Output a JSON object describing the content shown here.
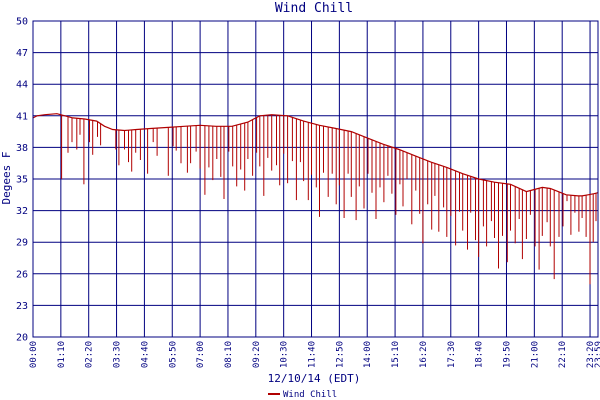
{
  "chart_data": {
    "type": "line",
    "title": "Wind Chill",
    "xlabel": "12/10/14 (EDT)",
    "ylabel": "Degees F",
    "ylim": [
      20,
      50
    ],
    "yticks": [
      "20",
      "23",
      "26",
      "29",
      "32",
      "35",
      "38",
      "41",
      "44",
      "47",
      "50"
    ],
    "xlim": [
      0,
      1420
    ],
    "xticks": [
      {
        "label": "00:00",
        "t": 0
      },
      {
        "label": "01:10",
        "t": 70
      },
      {
        "label": "02:20",
        "t": 140
      },
      {
        "label": "03:30",
        "t": 210
      },
      {
        "label": "04:40",
        "t": 280
      },
      {
        "label": "05:50",
        "t": 350
      },
      {
        "label": "07:00",
        "t": 420
      },
      {
        "label": "08:10",
        "t": 490
      },
      {
        "label": "09:20",
        "t": 560
      },
      {
        "label": "10:30",
        "t": 630
      },
      {
        "label": "11:40",
        "t": 700
      },
      {
        "label": "12:50",
        "t": 770
      },
      {
        "label": "14:00",
        "t": 840
      },
      {
        "label": "15:10",
        "t": 910
      },
      {
        "label": "16:20",
        "t": 980
      },
      {
        "label": "17:30",
        "t": 1050
      },
      {
        "label": "18:40",
        "t": 1120
      },
      {
        "label": "19:50",
        "t": 1190
      },
      {
        "label": "21:00",
        "t": 1260
      },
      {
        "label": "22:10",
        "t": 1330
      },
      {
        "label": "23:20",
        "t": 1400
      },
      {
        "label": "23:59",
        "t": 1439
      }
    ],
    "grid": true,
    "legend_position": "bottom-center",
    "colors": {
      "line": "#b00000",
      "axis": "#000080",
      "grid": "#000080",
      "background": "#ffffff"
    },
    "series": [
      {
        "name": "Wind Chill",
        "upper_envelope": [
          [
            0,
            40.8
          ],
          [
            10,
            41.0
          ],
          [
            30,
            41.1
          ],
          [
            60,
            41.2
          ],
          [
            80,
            41.0
          ],
          [
            100,
            40.8
          ],
          [
            130,
            40.7
          ],
          [
            160,
            40.5
          ],
          [
            180,
            40.0
          ],
          [
            200,
            39.7
          ],
          [
            230,
            39.6
          ],
          [
            260,
            39.7
          ],
          [
            300,
            39.8
          ],
          [
            340,
            39.9
          ],
          [
            380,
            40.0
          ],
          [
            420,
            40.1
          ],
          [
            460,
            40.0
          ],
          [
            500,
            40.0
          ],
          [
            540,
            40.4
          ],
          [
            570,
            41.0
          ],
          [
            600,
            41.1
          ],
          [
            640,
            41.0
          ],
          [
            680,
            40.5
          ],
          [
            720,
            40.1
          ],
          [
            760,
            39.8
          ],
          [
            800,
            39.5
          ],
          [
            840,
            38.9
          ],
          [
            880,
            38.3
          ],
          [
            920,
            37.8
          ],
          [
            960,
            37.2
          ],
          [
            1000,
            36.6
          ],
          [
            1040,
            36.1
          ],
          [
            1080,
            35.5
          ],
          [
            1120,
            35.0
          ],
          [
            1160,
            34.7
          ],
          [
            1200,
            34.5
          ],
          [
            1240,
            33.8
          ],
          [
            1260,
            34.0
          ],
          [
            1280,
            34.2
          ],
          [
            1300,
            34.1
          ],
          [
            1320,
            33.8
          ],
          [
            1340,
            33.5
          ],
          [
            1370,
            33.4
          ],
          [
            1380,
            33.4
          ],
          [
            1395,
            33.5
          ],
          [
            1410,
            33.6
          ],
          [
            1420,
            33.7
          ]
        ],
        "dips": [
          [
            72,
            35.0
          ],
          [
            88,
            37.5
          ],
          [
            98,
            38.5
          ],
          [
            110,
            37.8
          ],
          [
            118,
            39.2
          ],
          [
            128,
            34.5
          ],
          [
            142,
            38.5
          ],
          [
            150,
            37.3
          ],
          [
            162,
            39.0
          ],
          [
            170,
            38.2
          ],
          [
            208,
            37.8
          ],
          [
            216,
            36.3
          ],
          [
            230,
            37.8
          ],
          [
            240,
            36.6
          ],
          [
            248,
            35.7
          ],
          [
            258,
            37.5
          ],
          [
            270,
            36.8
          ],
          [
            288,
            35.5
          ],
          [
            302,
            38.5
          ],
          [
            312,
            37.2
          ],
          [
            340,
            35.3
          ],
          [
            352,
            38.1
          ],
          [
            360,
            37.7
          ],
          [
            372,
            36.5
          ],
          [
            388,
            35.6
          ],
          [
            396,
            36.5
          ],
          [
            410,
            37.6
          ],
          [
            420,
            36.0
          ],
          [
            432,
            33.5
          ],
          [
            442,
            36.1
          ],
          [
            452,
            34.9
          ],
          [
            462,
            36.9
          ],
          [
            472,
            35.2
          ],
          [
            480,
            33.1
          ],
          [
            492,
            37.6
          ],
          [
            502,
            36.2
          ],
          [
            512,
            34.3
          ],
          [
            522,
            35.9
          ],
          [
            532,
            33.9
          ],
          [
            540,
            36.9
          ],
          [
            552,
            35.3
          ],
          [
            562,
            37.5
          ],
          [
            570,
            36.2
          ],
          [
            580,
            33.4
          ],
          [
            590,
            37.0
          ],
          [
            600,
            35.8
          ],
          [
            612,
            36.3
          ],
          [
            620,
            34.4
          ],
          [
            630,
            37.4
          ],
          [
            640,
            34.6
          ],
          [
            652,
            36.7
          ],
          [
            662,
            33.0
          ],
          [
            672,
            36.6
          ],
          [
            680,
            34.8
          ],
          [
            692,
            33.0
          ],
          [
            700,
            35.4
          ],
          [
            712,
            34.2
          ],
          [
            720,
            31.4
          ],
          [
            730,
            35.6
          ],
          [
            742,
            33.3
          ],
          [
            752,
            35.5
          ],
          [
            762,
            32.6
          ],
          [
            770,
            34.4
          ],
          [
            782,
            31.3
          ],
          [
            792,
            35.5
          ],
          [
            800,
            33.3
          ],
          [
            812,
            31.1
          ],
          [
            820,
            34.3
          ],
          [
            832,
            32.2
          ],
          [
            842,
            35.5
          ],
          [
            852,
            33.7
          ],
          [
            862,
            31.2
          ],
          [
            872,
            34.2
          ],
          [
            882,
            32.8
          ],
          [
            892,
            35.3
          ],
          [
            902,
            33.6
          ],
          [
            912,
            31.6
          ],
          [
            922,
            34.5
          ],
          [
            930,
            32.4
          ],
          [
            940,
            35.0
          ],
          [
            952,
            30.7
          ],
          [
            962,
            33.9
          ],
          [
            972,
            31.7
          ],
          [
            980,
            28.9
          ],
          [
            992,
            32.6
          ],
          [
            1002,
            30.2
          ],
          [
            1010,
            33.4
          ],
          [
            1020,
            30.0
          ],
          [
            1032,
            32.3
          ],
          [
            1040,
            29.5
          ],
          [
            1050,
            31.5
          ],
          [
            1062,
            28.7
          ],
          [
            1072,
            31.9
          ],
          [
            1080,
            30.1
          ],
          [
            1092,
            28.3
          ],
          [
            1100,
            31.8
          ],
          [
            1112,
            29.2
          ],
          [
            1120,
            27.6
          ],
          [
            1132,
            30.5
          ],
          [
            1140,
            28.6
          ],
          [
            1152,
            31.0
          ],
          [
            1160,
            29.4
          ],
          [
            1170,
            26.5
          ],
          [
            1180,
            29.6
          ],
          [
            1192,
            27.1
          ],
          [
            1200,
            30.1
          ],
          [
            1212,
            28.9
          ],
          [
            1222,
            31.2
          ],
          [
            1230,
            27.4
          ],
          [
            1240,
            29.3
          ],
          [
            1250,
            31.6
          ],
          [
            1262,
            28.6
          ],
          [
            1272,
            26.4
          ],
          [
            1280,
            29.6
          ],
          [
            1292,
            30.9
          ],
          [
            1300,
            28.6
          ],
          [
            1310,
            25.5
          ],
          [
            1322,
            29.5
          ],
          [
            1332,
            30.5
          ],
          [
            1342,
            32.9
          ],
          [
            1352,
            29.7
          ],
          [
            1362,
            31.8
          ],
          [
            1372,
            30.0
          ],
          [
            1380,
            31.3
          ],
          [
            1390,
            29.5
          ],
          [
            1400,
            25.0
          ],
          [
            1408,
            29.0
          ],
          [
            1415,
            31.0
          ]
        ]
      }
    ]
  }
}
